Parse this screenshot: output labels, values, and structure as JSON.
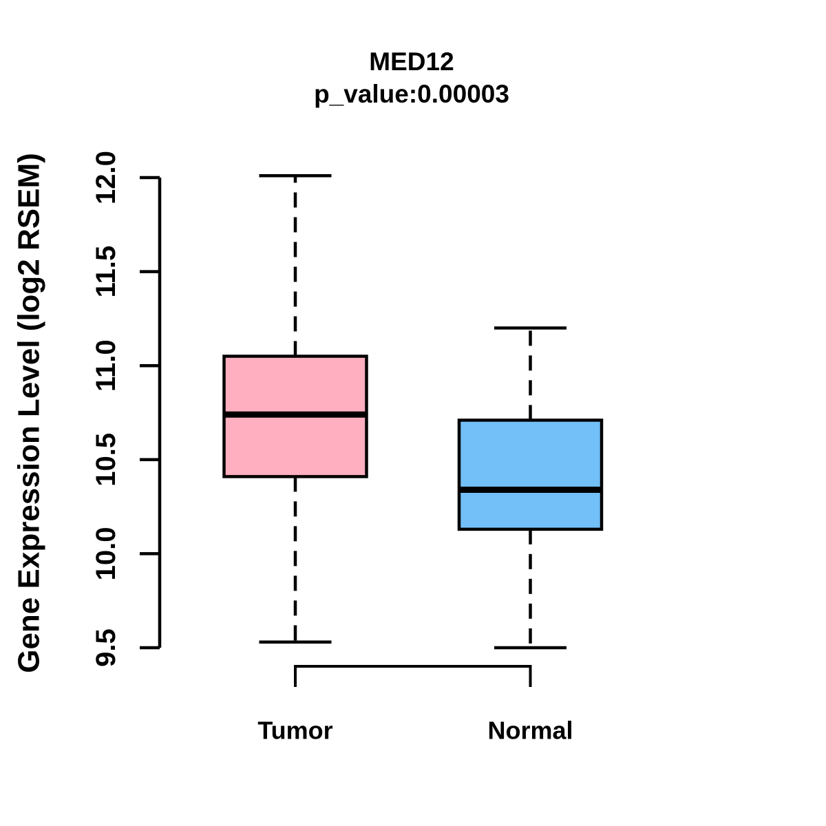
{
  "chart_data": {
    "type": "boxplot",
    "title": "MED12",
    "subtitle": "p_value:0.00003",
    "ylabel": "Gene Expression Level (log2 RSEM)",
    "xlabel": "",
    "ylim": [
      9.5,
      12.0
    ],
    "yticks": [
      9.5,
      10.0,
      10.5,
      11.0,
      11.5,
      12.0
    ],
    "grid": false,
    "legend": "none",
    "groups": [
      {
        "label": "Tumor",
        "fill_color": "#FFAFC0",
        "whisker_low": 9.53,
        "q1": 10.41,
        "median": 10.74,
        "q3": 11.05,
        "whisker_high": 12.01
      },
      {
        "label": "Normal",
        "fill_color": "#73BFF7",
        "whisker_low": 9.5,
        "q1": 10.13,
        "median": 10.34,
        "q3": 10.71,
        "whisker_high": 11.2
      }
    ],
    "colors": {
      "line": "#000000",
      "background": "#FFFFFF"
    },
    "annotations": {
      "comparison_bracket": "connects Tumor and Normal below axis"
    }
  }
}
